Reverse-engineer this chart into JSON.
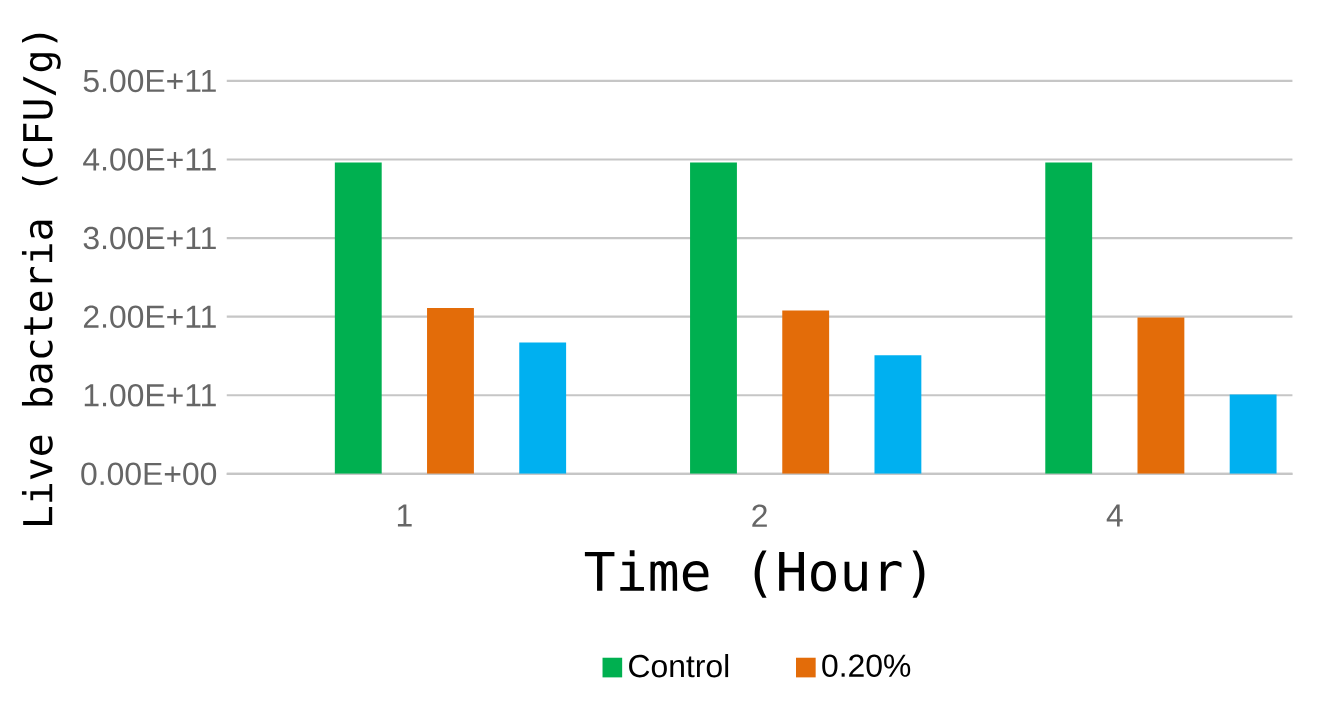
{
  "chart_data": {
    "type": "bar",
    "xlabel": "Time (Hour)",
    "ylabel": "Live bacteria (CFU/g)",
    "categories": [
      "1",
      "2",
      "4"
    ],
    "series": [
      {
        "name": "Control",
        "color": "#00b050",
        "values": [
          396000000000.0,
          396000000000.0,
          396000000000.0
        ]
      },
      {
        "name": "0.20%",
        "color": "#e36c09",
        "values": [
          211000000000.0,
          208000000000.0,
          199000000000.0
        ]
      },
      {
        "color": "#00b0f0",
        "values": [
          167000000000.0,
          151000000000.0,
          101000000000.0
        ]
      }
    ],
    "ylim": [
      0,
      500000000000.0
    ],
    "yticks": [
      {
        "value": 0,
        "label": "0.00E+00"
      },
      {
        "value": 100000000000.0,
        "label": "1.00E+11"
      },
      {
        "value": 200000000000.0,
        "label": "2.00E+11"
      },
      {
        "value": 300000000000.0,
        "label": "3.00E+11"
      },
      {
        "value": 400000000000.0,
        "label": "4.00E+11"
      },
      {
        "value": 500000000000.0,
        "label": "5.00E+11"
      }
    ],
    "grid": "y",
    "legend": "bottom"
  }
}
